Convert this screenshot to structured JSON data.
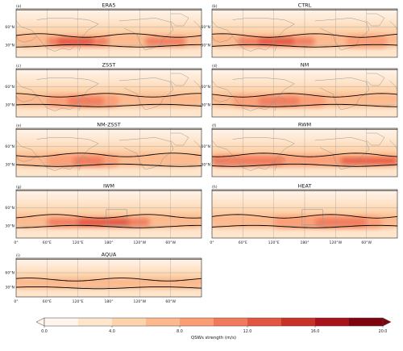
{
  "chart_data": {
    "type": "heatmap",
    "panels": [
      {
        "id": "ERA5",
        "label": "(a)",
        "title": "ERA5",
        "land": true,
        "ticks_y": [
          "60°N",
          "30°N"
        ],
        "ticks_x": [],
        "bands": [
          {
            "lon": [
              0,
              360
            ],
            "level": 3
          },
          {
            "lon": [
              60,
              180
            ],
            "level": 5
          },
          {
            "lon": [
              80,
              150
            ],
            "level": 6
          },
          {
            "lon": [
              250,
              330
            ],
            "level": 5
          }
        ]
      },
      {
        "id": "CTRL",
        "label": "(b)",
        "title": "CTRL",
        "land": true,
        "ticks_y": [
          "60°N",
          "30°N"
        ],
        "ticks_x": [],
        "bands": [
          {
            "lon": [
              0,
              360
            ],
            "level": 3
          },
          {
            "lon": [
              50,
              200
            ],
            "level": 5
          },
          {
            "lon": [
              90,
              160
            ],
            "level": 6
          },
          {
            "lon": [
              260,
              340
            ],
            "level": 4
          }
        ]
      },
      {
        "id": "ZSST",
        "label": "(c)",
        "title": "ZSST",
        "land": true,
        "ticks_y": [
          "60°N",
          "30°N"
        ],
        "ticks_x": [],
        "bands": [
          {
            "lon": [
              0,
              360
            ],
            "level": 3
          },
          {
            "lon": [
              60,
              200
            ],
            "level": 4
          },
          {
            "lon": [
              100,
              170
            ],
            "level": 5
          }
        ]
      },
      {
        "id": "NM",
        "label": "(d)",
        "title": "NM",
        "land": true,
        "ticks_y": [
          "60°N",
          "30°N"
        ],
        "ticks_x": [],
        "bands": [
          {
            "lon": [
              0,
              360
            ],
            "level": 3
          },
          {
            "lon": [
              40,
              220
            ],
            "level": 4
          },
          {
            "lon": [
              90,
              170
            ],
            "level": 5
          }
        ]
      },
      {
        "id": "NM-ZSST",
        "label": "(e)",
        "title": "NM-ZSST",
        "land": true,
        "ticks_y": [
          "60°N",
          "30°N"
        ],
        "ticks_x": [],
        "bands": [
          {
            "lon": [
              0,
              360
            ],
            "level": 3
          },
          {
            "lon": [
              60,
              200
            ],
            "level": 4
          },
          {
            "lon": [
              110,
              170
            ],
            "level": 5
          }
        ]
      },
      {
        "id": "RWM",
        "label": "(f)",
        "title": "RWM",
        "land": true,
        "ticks_y": [
          "60°N",
          "30°N"
        ],
        "ticks_x": [],
        "bands": [
          {
            "lon": [
              0,
              360
            ],
            "level": 4
          },
          {
            "lon": [
              0,
              140
            ],
            "level": 5
          },
          {
            "lon": [
              250,
              360
            ],
            "level": 6
          }
        ]
      },
      {
        "id": "IWM",
        "label": "(g)",
        "title": "IWM",
        "land": false,
        "ticks_y": [
          "60°N",
          "30°N"
        ],
        "ticks_x": [
          "0°",
          "60°E",
          "120°E",
          "180°",
          "120°W",
          "60°W"
        ],
        "bands": [
          {
            "lon": [
              0,
              360
            ],
            "level": 3
          },
          {
            "lon": [
              60,
              260
            ],
            "level": 5
          },
          {
            "lon": [
              120,
              220
            ],
            "level": 6
          }
        ]
      },
      {
        "id": "HEAT",
        "label": "(h)",
        "title": "HEAT",
        "land": false,
        "ticks_y": [],
        "ticks_x": [
          "0°",
          "60°E",
          "120°E",
          "180°",
          "120°W",
          "60°W"
        ],
        "bands": [
          {
            "lon": [
              0,
              360
            ],
            "level": 3
          },
          {
            "lon": [
              120,
              330
            ],
            "level": 4
          },
          {
            "lon": [
              200,
              300
            ],
            "level": 5
          }
        ]
      },
      {
        "id": "AQUA",
        "label": "(i)",
        "title": "AQUA",
        "land": false,
        "ticks_y": [
          "60°N",
          "30°N"
        ],
        "ticks_x": [
          "0°",
          "60°E",
          "120°E",
          "180°",
          "120°W",
          "60°W"
        ],
        "bands": [
          {
            "lon": [
              0,
              360
            ],
            "level": 3
          }
        ]
      }
    ],
    "colorbar": {
      "label": "QSWs strength (m/s)",
      "range": [
        0,
        20
      ],
      "ticks": [
        "0.0",
        "4.0",
        "8.0",
        "12.0",
        "16.0",
        "20.0"
      ],
      "colors": [
        "#fff5ec",
        "#fee6cd",
        "#fdd3ab",
        "#fcb98e",
        "#fb9c75",
        "#f07a5b",
        "#e25540",
        "#c93026",
        "#a8121a",
        "#7e0510"
      ]
    }
  }
}
